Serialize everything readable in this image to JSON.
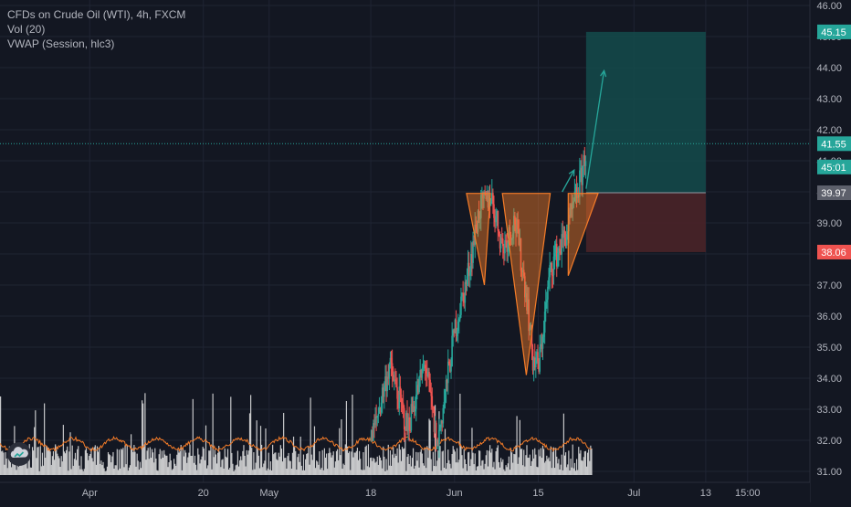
{
  "legend": {
    "symbol": "CFDs on Crude Oil (WTI), 4h, FXCM",
    "volume": "Vol (20)",
    "vwap": "VWAP (Session, hlc3)"
  },
  "logo": {
    "icon": "tradingview-cloud-icon"
  },
  "colors": {
    "background": "#131722",
    "grid": "#1f2433",
    "up": "#26a69a",
    "down": "#ef5350",
    "volume": "#e6e6e6",
    "vwap": "#f57c28",
    "pattern": "#f57c28",
    "arrow": "#26a69a",
    "profit_zone": "#144b4b",
    "loss_zone": "#4a2428",
    "axis_text": "#b2b5be"
  },
  "chart_data": {
    "type": "candlestick",
    "y_axis": {
      "min": 31.0,
      "max": 46.0,
      "ticks": [
        "31.00",
        "32.00",
        "33.00",
        "34.00",
        "35.00",
        "36.00",
        "37.00",
        "38.00",
        "39.00",
        "40.00",
        "41.00",
        "42.00",
        "43.00",
        "44.00",
        "45.00",
        "46.00"
      ]
    },
    "x_axis": {
      "ticks": [
        {
          "label": "Apr",
          "date": "2020-04-01"
        },
        {
          "label": "20",
          "date": "2020-04-20"
        },
        {
          "label": "May",
          "date": "2020-05-01"
        },
        {
          "label": "18",
          "date": "2020-05-18"
        },
        {
          "label": "Jun",
          "date": "2020-06-01"
        },
        {
          "label": "15",
          "date": "2020-06-15"
        },
        {
          "label": "Jul",
          "date": "2020-07-01"
        },
        {
          "label": "13",
          "date": "2020-07-13"
        },
        {
          "label": "15:00",
          "date": "2020-07-20"
        }
      ]
    },
    "price_labels": [
      {
        "value": 45.15,
        "text": "45.15",
        "role": "target"
      },
      {
        "value": 41.55,
        "text": "41.55",
        "role": "last-price"
      },
      {
        "value": 40.8,
        "text": "45:01",
        "role": "countdown"
      },
      {
        "value": 39.97,
        "text": "39.97",
        "role": "entry"
      },
      {
        "value": 38.06,
        "text": "38.06",
        "role": "stop"
      }
    ],
    "price_path": [
      {
        "date": "2020-05-18",
        "price": 32.0
      },
      {
        "date": "2020-05-21",
        "price": 34.4
      },
      {
        "date": "2020-05-24",
        "price": 32.4
      },
      {
        "date": "2020-05-27",
        "price": 34.5
      },
      {
        "date": "2020-05-29",
        "price": 31.8
      },
      {
        "date": "2020-06-01",
        "price": 35.6
      },
      {
        "date": "2020-06-03",
        "price": 37.2
      },
      {
        "date": "2020-06-05",
        "price": 39.4
      },
      {
        "date": "2020-06-07",
        "price": 39.9
      },
      {
        "date": "2020-06-09",
        "price": 38.2
      },
      {
        "date": "2020-06-11",
        "price": 39.1
      },
      {
        "date": "2020-06-13",
        "price": 36.6
      },
      {
        "date": "2020-06-14",
        "price": 34.6
      },
      {
        "date": "2020-06-15",
        "price": 34.4
      },
      {
        "date": "2020-06-17",
        "price": 37.6
      },
      {
        "date": "2020-06-19",
        "price": 38.4
      },
      {
        "date": "2020-06-20",
        "price": 38.9
      },
      {
        "date": "2020-06-22",
        "price": 40.4
      },
      {
        "date": "2020-06-23",
        "price": 41.5
      }
    ],
    "patterns": [
      {
        "name": "left-shoulder",
        "points": [
          [
            "2020-06-03",
            39.95
          ],
          [
            "2020-06-07",
            39.95
          ],
          [
            "2020-06-06",
            37.0
          ]
        ]
      },
      {
        "name": "head",
        "points": [
          [
            "2020-06-09",
            39.95
          ],
          [
            "2020-06-17",
            39.95
          ],
          [
            "2020-06-13",
            34.1
          ]
        ]
      },
      {
        "name": "right-shoulder",
        "points": [
          [
            "2020-06-20",
            39.95
          ],
          [
            "2020-06-25",
            39.95
          ],
          [
            "2020-06-20",
            37.3
          ]
        ]
      }
    ],
    "neckline": 39.97,
    "position": {
      "start": "2020-06-23",
      "end": "2020-07-13",
      "entry": 39.97,
      "target": 45.15,
      "stop": 38.06
    },
    "projection_arrow": [
      [
        "2020-06-23",
        40.1
      ],
      [
        "2020-06-26",
        43.9
      ]
    ],
    "small_arrow": [
      [
        "2020-06-19",
        40.0
      ],
      [
        "2020-06-21",
        40.7
      ]
    ],
    "last_price_line": 41.55
  }
}
